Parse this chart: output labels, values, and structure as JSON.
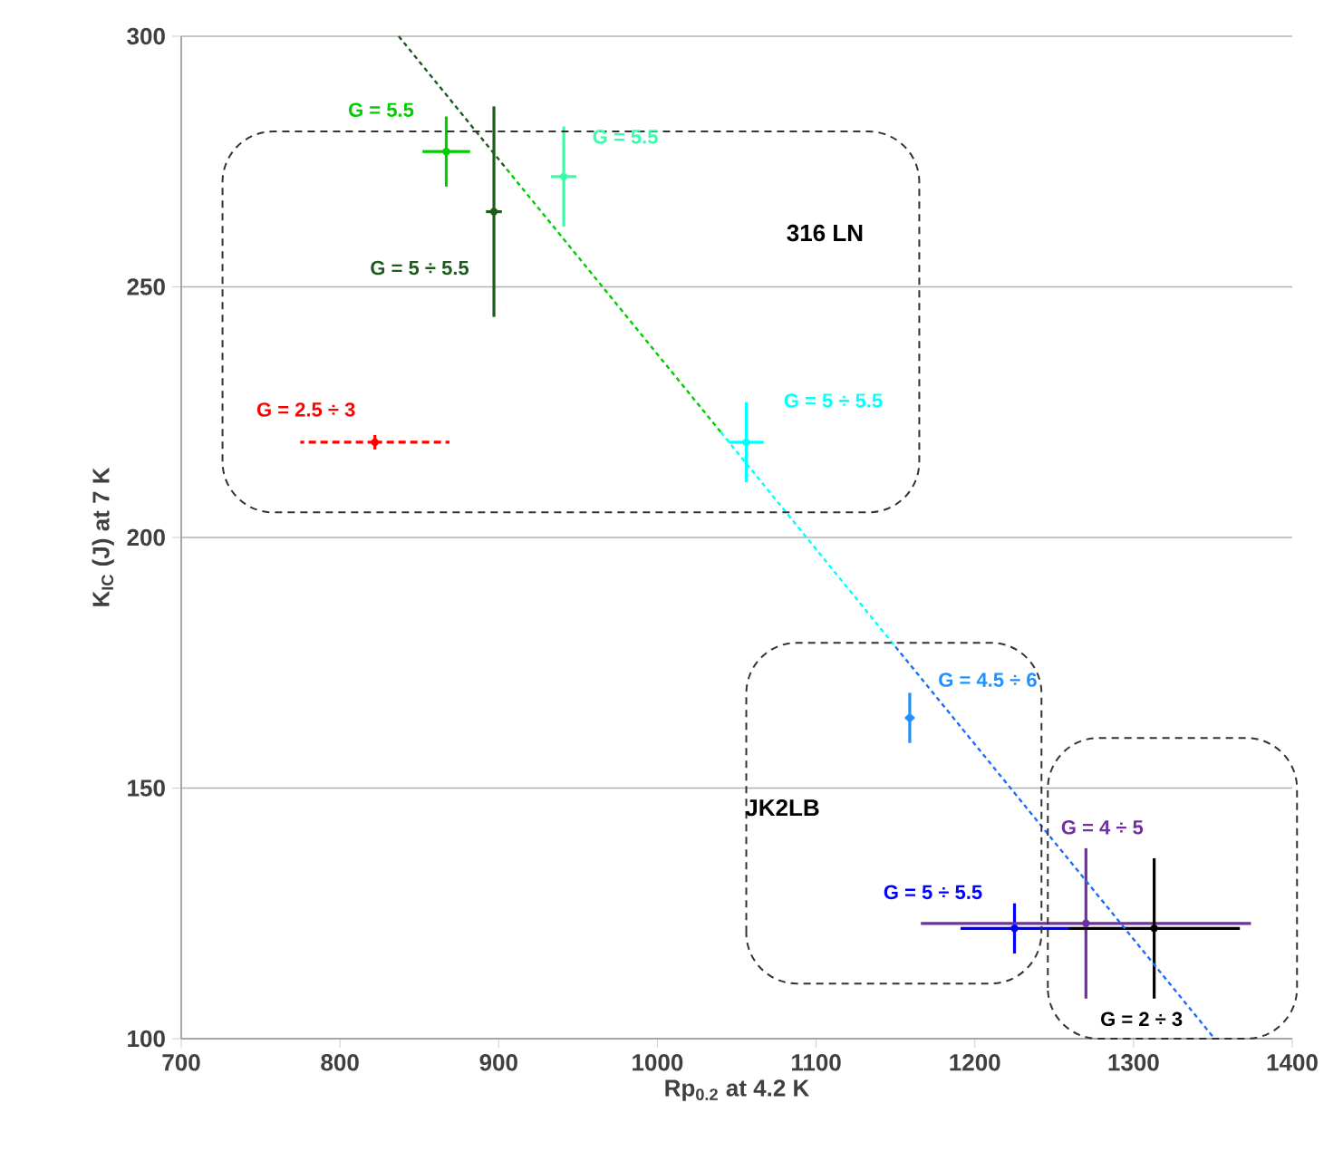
{
  "chart_data": {
    "type": "scatter",
    "xlabel": "Rp$_{0.2}$ at 4.2 K",
    "ylabel": "K$_{IC}$ (J) at 7 K",
    "xlim": [
      700,
      1400
    ],
    "ylim": [
      100,
      300
    ],
    "xticks": [
      700,
      800,
      900,
      1000,
      1100,
      1200,
      1300,
      1400
    ],
    "yticks": [
      100,
      150,
      200,
      250,
      300
    ],
    "grid": "y",
    "series": [
      {
        "color": "#1e5c1e",
        "x": [
          897
        ],
        "values": [
          265
        ],
        "errors": [
          21
        ],
        "xerrors": [
          5
        ]
      },
      {
        "color": "#ff0000",
        "x": [
          822
        ],
        "values": [
          219
        ],
        "errors": [
          2
        ],
        "xerrors": [
          47
        ],
        "line_style": "dashed"
      },
      {
        "color": "#00cc00",
        "x": [
          867
        ],
        "values": [
          277
        ],
        "errors": [
          7
        ],
        "xerrors": [
          15
        ]
      },
      {
        "color": "#33ffaa",
        "x": [
          941
        ],
        "values": [
          272
        ],
        "errors": [
          10
        ],
        "xerrors": [
          8
        ]
      },
      {
        "color": "#00ffff",
        "x": [
          1056
        ],
        "values": [
          219
        ],
        "errors": [
          8
        ],
        "xerrors": [
          11
        ]
      },
      {
        "color": "#1e90ff",
        "x": [
          1159
        ],
        "values": [
          164
        ],
        "errors": [
          5
        ],
        "xerrors": [
          3
        ]
      },
      {
        "color": "#0000ff",
        "x": [
          1225
        ],
        "values": [
          122
        ],
        "errors": [
          5
        ],
        "xerrors": [
          34
        ]
      },
      {
        "color": "#7030a0",
        "x": [
          1270
        ],
        "values": [
          123
        ],
        "errors": [
          15
        ],
        "xerrors": [
          104
        ]
      },
      {
        "color": "#000000",
        "x": [
          1313
        ],
        "values": [
          122
        ],
        "errors": [
          14
        ],
        "xerrors": [
          54
        ]
      },
      {
        "type": "line",
        "line_style": "dashed",
        "color": "#1e5c1e",
        "x": [
          837,
          905
        ],
        "values": [
          300,
          273.5
        ]
      },
      {
        "type": "line",
        "line_style": "dashed",
        "color": "#00cc00",
        "x": [
          905,
          1040
        ],
        "values": [
          273.5,
          221
        ]
      },
      {
        "type": "line",
        "line_style": "dashed",
        "color": "#00ffff",
        "x": [
          1040,
          1150
        ],
        "values": [
          221,
          178.2
        ]
      },
      {
        "type": "line",
        "line_style": "dashed",
        "color": "#1e6cff",
        "x": [
          1150,
          1351
        ],
        "values": [
          178.2,
          100
        ]
      }
    ],
    "annotations": [
      "G = 5 ÷ 5.5",
      "G = 2.5 ÷ 3",
      "G = 5.5",
      "G = 5.5",
      "G = 5 ÷ 5.5",
      "G = 4.5 ÷ 6",
      "G = 5 ÷ 5.5",
      "G = 4 ÷ 5",
      "G = 2 ÷ 3",
      "316 LN",
      "JK2LB"
    ]
  }
}
